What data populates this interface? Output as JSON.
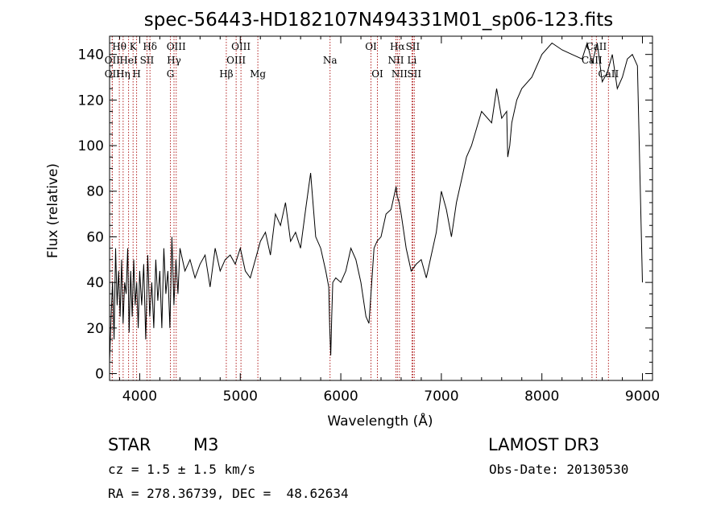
{
  "chart_data": {
    "type": "line",
    "title": "spec-56443-HD182107N494331M01_sp06-123.fits",
    "xlabel": "Wavelength (Å)",
    "ylabel": "Flux (relative)",
    "xlim": [
      3700,
      9100
    ],
    "ylim": [
      -3,
      148
    ],
    "xticks": [
      4000,
      5000,
      6000,
      7000,
      8000,
      9000
    ],
    "yticks": [
      0,
      20,
      40,
      60,
      80,
      100,
      120,
      140
    ],
    "series": [
      {
        "name": "flux",
        "x": [
          3700,
          3715,
          3730,
          3745,
          3760,
          3775,
          3790,
          3805,
          3820,
          3835,
          3850,
          3865,
          3880,
          3895,
          3910,
          3925,
          3940,
          3955,
          3970,
          3985,
          4000,
          4020,
          4040,
          4060,
          4080,
          4100,
          4120,
          4140,
          4160,
          4180,
          4200,
          4220,
          4240,
          4260,
          4280,
          4300,
          4320,
          4340,
          4360,
          4380,
          4400,
          4450,
          4500,
          4550,
          4600,
          4650,
          4700,
          4750,
          4800,
          4850,
          4900,
          4950,
          5000,
          5050,
          5100,
          5150,
          5200,
          5250,
          5300,
          5350,
          5400,
          5450,
          5500,
          5550,
          5600,
          5650,
          5700,
          5750,
          5800,
          5850,
          5880,
          5890,
          5900,
          5910,
          5920,
          5950,
          6000,
          6050,
          6100,
          6150,
          6200,
          6250,
          6280,
          6300,
          6330,
          6360,
          6400,
          6450,
          6500,
          6550,
          6560,
          6580,
          6600,
          6650,
          6700,
          6750,
          6800,
          6850,
          6900,
          6950,
          7000,
          7050,
          7100,
          7150,
          7200,
          7250,
          7300,
          7400,
          7500,
          7550,
          7600,
          7650,
          7660,
          7680,
          7700,
          7750,
          7800,
          7900,
          8000,
          8100,
          8200,
          8300,
          8400,
          8450,
          8500,
          8550,
          8600,
          8650,
          8700,
          8750,
          8800,
          8850,
          8900,
          8950,
          9000
        ],
        "values": [
          5,
          25,
          40,
          15,
          55,
          30,
          45,
          25,
          50,
          22,
          40,
          35,
          55,
          18,
          45,
          25,
          50,
          30,
          40,
          20,
          45,
          30,
          48,
          15,
          52,
          25,
          40,
          20,
          50,
          32,
          45,
          20,
          55,
          35,
          45,
          20,
          60,
          30,
          50,
          35,
          55,
          45,
          50,
          42,
          48,
          52,
          38,
          55,
          45,
          50,
          52,
          48,
          55,
          45,
          42,
          50,
          58,
          62,
          52,
          70,
          65,
          75,
          58,
          62,
          55,
          72,
          88,
          60,
          55,
          45,
          38,
          20,
          8,
          25,
          40,
          42,
          40,
          45,
          55,
          50,
          40,
          25,
          22,
          35,
          55,
          58,
          60,
          70,
          72,
          82,
          78,
          75,
          70,
          55,
          45,
          48,
          50,
          42,
          52,
          62,
          80,
          72,
          60,
          75,
          85,
          95,
          100,
          115,
          110,
          125,
          112,
          115,
          95,
          100,
          110,
          120,
          125,
          130,
          140,
          145,
          142,
          140,
          138,
          145,
          136,
          145,
          128,
          132,
          140,
          125,
          130,
          138,
          140,
          135,
          40
        ]
      }
    ],
    "spectral_lines": [
      {
        "name": "Hθ",
        "x": 3797,
        "row": 0
      },
      {
        "name": "K",
        "x": 3934,
        "row": 0
      },
      {
        "name": "Hδ",
        "x": 4102,
        "row": 0
      },
      {
        "name": "OII",
        "x": 3727,
        "row": 1
      },
      {
        "name": "HeI",
        "x": 3889,
        "row": 1
      },
      {
        "name": "SII",
        "x": 4072,
        "row": 1
      },
      {
        "name": "OII",
        "x": 3727,
        "row": 2
      },
      {
        "name": "Hη",
        "x": 3835,
        "row": 2
      },
      {
        "name": "H",
        "x": 3969,
        "row": 2
      },
      {
        "name": "OIII",
        "x": 4363,
        "row": 0
      },
      {
        "name": "Hγ",
        "x": 4341,
        "row": 1
      },
      {
        "name": "G",
        "x": 4305,
        "row": 2
      },
      {
        "name": "OIII",
        "x": 5007,
        "row": 0
      },
      {
        "name": "OIII",
        "x": 4959,
        "row": 1
      },
      {
        "name": "Hβ",
        "x": 4861,
        "row": 2
      },
      {
        "name": "Mg",
        "x": 5175,
        "row": 2
      },
      {
        "name": "Na",
        "x": 5893,
        "row": 1
      },
      {
        "name": "OI",
        "x": 6300,
        "row": 0
      },
      {
        "name": "OI",
        "x": 6364,
        "row": 2
      },
      {
        "name": "Hα",
        "x": 6563,
        "row": 0
      },
      {
        "name": "SII",
        "x": 6716,
        "row": 0
      },
      {
        "name": "NII",
        "x": 6548,
        "row": 1
      },
      {
        "name": "Li",
        "x": 6708,
        "row": 1
      },
      {
        "name": "NII",
        "x": 6583,
        "row": 2
      },
      {
        "name": "SII",
        "x": 6731,
        "row": 2
      },
      {
        "name": "CaII",
        "x": 8542,
        "row": 0
      },
      {
        "name": "CaII",
        "x": 8498,
        "row": 1
      },
      {
        "name": "CaII",
        "x": 8662,
        "row": 2
      }
    ],
    "line_color": "#000000",
    "marker_color": "#b22222"
  },
  "info": {
    "object_class": "STAR",
    "subclass": "M3",
    "survey": "LAMOST DR3",
    "redshift": "cz = 1.5 ± 1.5 km/s",
    "obs_date": "Obs-Date: 20130530",
    "coords": "RA = 278.36739, DEC =  48.62634"
  }
}
